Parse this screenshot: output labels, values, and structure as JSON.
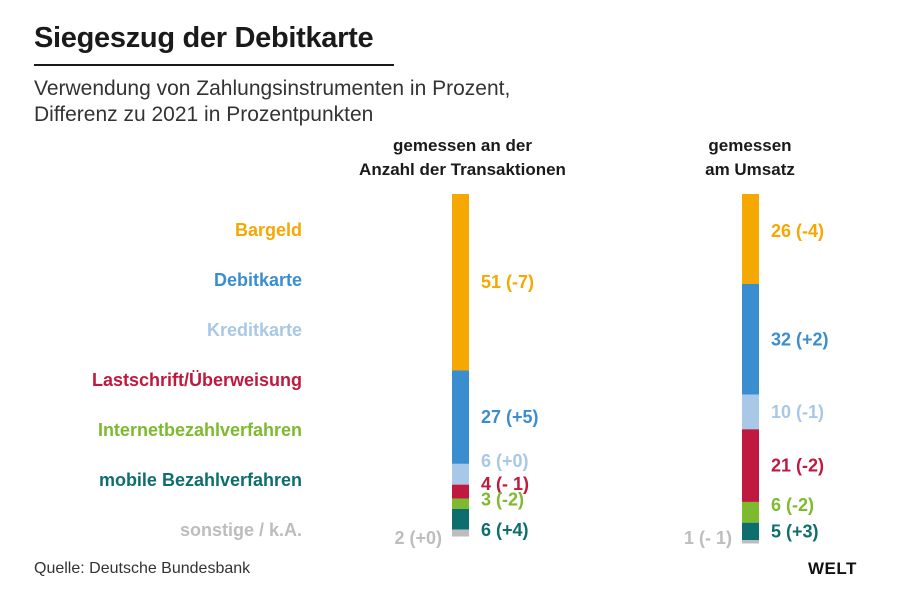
{
  "header": {
    "title": "Siegeszug der Debitkarte",
    "subtitle_line1": "Verwendung von Zahlungsinstrumenten in Prozent,",
    "subtitle_line2": "Differenz zu 2021 in Prozentpunkten"
  },
  "column_headers": {
    "left_line1": "gemessen an der",
    "left_line2": "Anzahl der Transaktionen",
    "right_line1": "gemessen",
    "right_line2": "am Umsatz"
  },
  "footer": {
    "source": "Quelle: Deutsche Bundesbank",
    "logo": "WELT"
  },
  "chart_data": {
    "type": "bar",
    "stacked": true,
    "orientation": "vertical",
    "title": "Siegeszug der Debitkarte",
    "subtitle": "Verwendung von Zahlungsinstrumenten in Prozent, Differenz zu 2021 in Prozentpunkten",
    "categories": [
      "gemessen an der Anzahl der Transaktionen",
      "gemessen am Umsatz"
    ],
    "series": [
      {
        "name": "Bargeld",
        "color": "#f5a800",
        "values": [
          51,
          26
        ],
        "labels": [
          "51 (-7)",
          "26 (-4)"
        ]
      },
      {
        "name": "Debitkarte",
        "color": "#3a8ed0",
        "values": [
          27,
          32
        ],
        "labels": [
          "27 (+5)",
          "32 (+2)"
        ]
      },
      {
        "name": "Kreditkarte",
        "color": "#a9c8e8",
        "values": [
          6,
          10
        ],
        "labels": [
          "6 (+0)",
          "10 (-1)"
        ]
      },
      {
        "name": "Lastschrift/Überweisung",
        "color": "#c0193f",
        "values": [
          4,
          21
        ],
        "labels": [
          "4 (- 1)",
          "21 (-2)"
        ]
      },
      {
        "name": "Internetbezahlverfahren",
        "color": "#7dba2e",
        "values": [
          3,
          6
        ],
        "labels": [
          "3 (-2)",
          "6 (-2)"
        ]
      },
      {
        "name": "mobile Bezahlverfahren",
        "color": "#0e6e6e",
        "values": [
          6,
          5
        ],
        "labels": [
          "6 (+4)",
          "5 (+3)"
        ]
      },
      {
        "name": "sonstige / k.A.",
        "color": "#bdbdbd",
        "values": [
          2,
          1
        ],
        "labels": [
          "2 (+0)",
          "1 (- 1)"
        ]
      }
    ],
    "ylim": [
      0,
      100
    ]
  }
}
